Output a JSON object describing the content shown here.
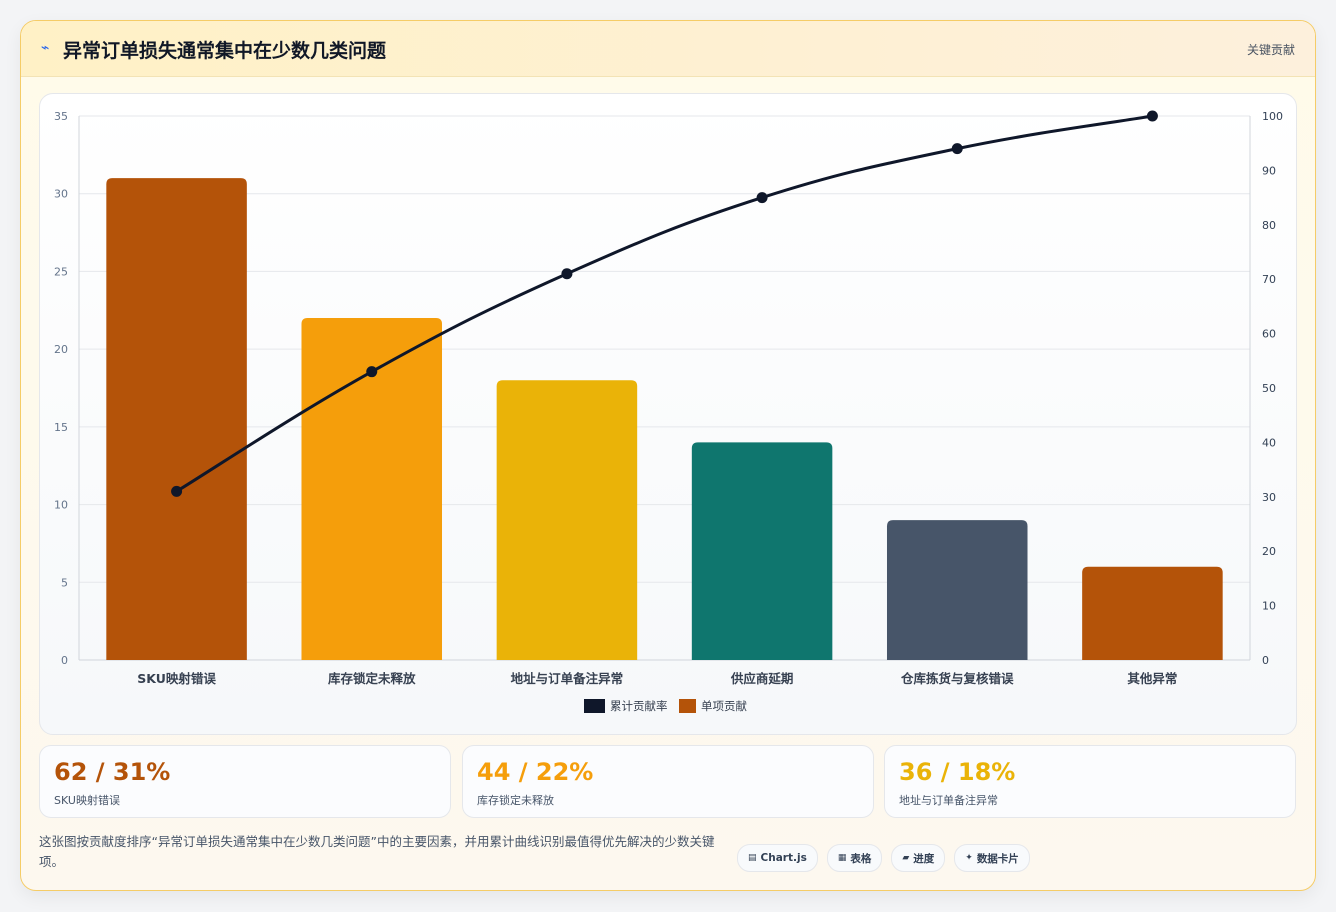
{
  "header": {
    "icon": "lightning-icon",
    "title": "异常订单损失通常集中在少数几类问题",
    "tag": "关键贡献"
  },
  "chart_data": {
    "type": "bar",
    "categories": [
      "SKU映射错误",
      "库存锁定未释放",
      "地址与订单备注异常",
      "供应商延期",
      "仓库拣货与复核错误",
      "其他异常"
    ],
    "series": [
      {
        "name": "单项贡献",
        "type": "bar",
        "axis": "left",
        "values": [
          31,
          22,
          18,
          14,
          9,
          6
        ],
        "colors": [
          "#b45309",
          "#f59e0b",
          "#eab308",
          "#0f766e",
          "#475569",
          "#b45309"
        ]
      },
      {
        "name": "累计贡献率",
        "type": "line",
        "axis": "right",
        "values": [
          31,
          53,
          71,
          85,
          94,
          100
        ],
        "color": "#0f172a"
      }
    ],
    "y_left": {
      "min": 0,
      "max": 35,
      "ticks": [
        0,
        5,
        10,
        15,
        20,
        25,
        30,
        35
      ]
    },
    "y_right": {
      "min": 0,
      "max": 100,
      "ticks": [
        0,
        10,
        20,
        30,
        40,
        50,
        60,
        70,
        80,
        90,
        100
      ]
    },
    "legend": [
      "累计贡献率",
      "单项贡献"
    ],
    "legend_position": "bottom",
    "grid": true
  },
  "stats": [
    {
      "value": "62 / 31%",
      "label": "SKU映射错误",
      "color": "#b45309"
    },
    {
      "value": "44 / 22%",
      "label": "库存锁定未释放",
      "color": "#f59e0b"
    },
    {
      "value": "36 / 18%",
      "label": "地址与订单备注异常",
      "color": "#eab308"
    }
  ],
  "description": "这张图按贡献度排序“异常订单损失通常集中在少数几类问题”中的主要因素，并用累计曲线识别最值得优先解决的少数关键项。",
  "chips": [
    {
      "icon": "▤",
      "label": "Chart.js"
    },
    {
      "icon": "▦",
      "label": "表格"
    },
    {
      "icon": "▰",
      "label": "进度"
    },
    {
      "icon": "✦",
      "label": "数据卡片"
    }
  ]
}
